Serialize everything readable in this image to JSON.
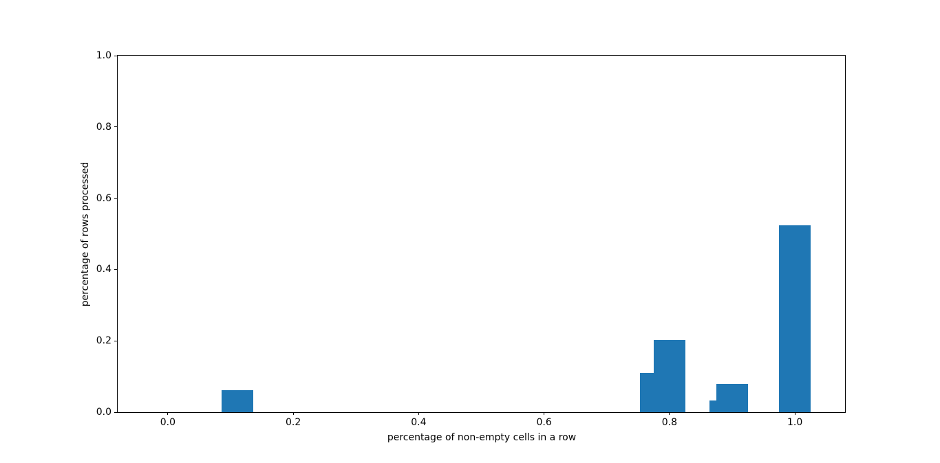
{
  "figure": {
    "background": "#ffffff",
    "spine_color": "#000000",
    "text_color": "#000000"
  },
  "chart_data": {
    "type": "bar",
    "title": "",
    "xlabel": "percentage of non-empty cells in a row",
    "ylabel": "percentage of rows processed",
    "x": [
      0.111,
      0.778,
      0.8,
      0.889,
      0.9,
      1.0
    ],
    "values": [
      0.062,
      0.11,
      0.202,
      0.033,
      0.079,
      0.525
    ],
    "bar_width": 0.05,
    "bar_color": "#1f77b4",
    "xlim": [
      -0.08,
      1.08
    ],
    "ylim": [
      0,
      1
    ],
    "xticks": [
      0.0,
      0.2,
      0.4,
      0.6,
      0.8,
      1.0
    ],
    "xtick_labels": [
      "0.0",
      "0.2",
      "0.4",
      "0.6",
      "0.8",
      "1.0"
    ],
    "yticks": [
      0.0,
      0.2,
      0.4,
      0.6,
      0.8,
      1.0
    ],
    "ytick_labels": [
      "0.0",
      "0.2",
      "0.4",
      "0.6",
      "0.8",
      "1.0"
    ],
    "grid": false,
    "legend_position": "none"
  }
}
